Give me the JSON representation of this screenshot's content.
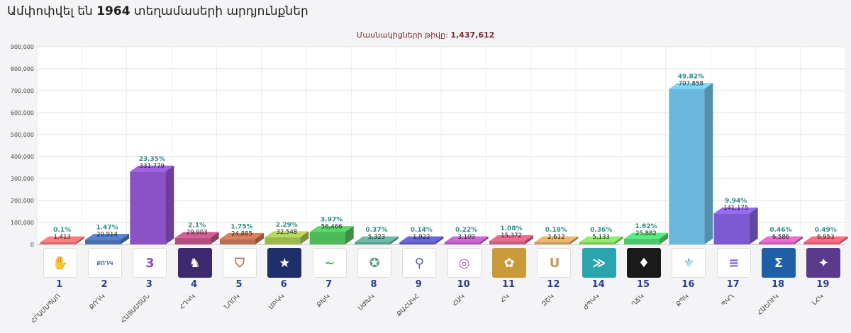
{
  "header": {
    "title_prefix": "Ամփոփվել են",
    "title_number": "1964",
    "title_suffix": "տեղամասերի արդյունքներ"
  },
  "chart_data": {
    "type": "bar",
    "subtitle_label": "Մասնակիցների թիվը:",
    "subtitle_value": "1,437,612",
    "ylim": [
      0,
      900000
    ],
    "yticks": [
      "0",
      "100,000",
      "200,000",
      "300,000",
      "400,000",
      "500,000",
      "600,000",
      "700,000",
      "800,000",
      "900,000"
    ],
    "grid": true,
    "categories": [
      "1",
      "2",
      "3",
      "4",
      "5",
      "6",
      "7",
      "8",
      "9",
      "10",
      "11",
      "12",
      "14",
      "15",
      "16",
      "17",
      "18",
      "19"
    ],
    "abbreviations": [
      "ՀՐԱՄՍՊԱՈ",
      "ՔՈԴԿ",
      "ՀԱՅԱՍՏԱՆ",
      "ՀԴԿԿ",
      "ՆՈՈԿ",
      "ՄԲԿԿ",
      "ՔԽԿ",
      "ՍԺԽԿ",
      "ՔԱՀԱԿՀ",
      "ՀԱԿ",
      "ՀԿ",
      "ԶՇԿ",
      "ԺՊԿԿ",
      "ՂՃԿ",
      "ՔՊԿ",
      "ՊԿՂ",
      "ՀԱԵՈՒԿ",
      "ԼՀԿ"
    ],
    "values": [
      1413,
      20914,
      331779,
      29903,
      24885,
      32548,
      56466,
      5323,
      1922,
      3109,
      15372,
      2612,
      5133,
      25882,
      707858,
      141175,
      6586,
      6953
    ],
    "value_labels": [
      "1,413",
      "20,914",
      "331,779",
      "29,903",
      "24,885",
      "32,548",
      "56,466",
      "5,323",
      "1,922",
      "3,109",
      "15,372",
      "2,612",
      "5,133",
      "25,882",
      "707,858",
      "141,175",
      "6,586",
      "6,953"
    ],
    "percents": [
      "0.1%",
      "1.47%",
      "23.35%",
      "2.1%",
      "1.75%",
      "2.29%",
      "3.97%",
      "0.37%",
      "0.14%",
      "0.22%",
      "1.08%",
      "0.18%",
      "0.36%",
      "1.82%",
      "49.82%",
      "9.94%",
      "0.46%",
      "0.49%"
    ],
    "colors": [
      "#d66b6b",
      "#4b6fb3",
      "#8a52c4",
      "#b4507e",
      "#b86d4e",
      "#9cb84c",
      "#4cb85a",
      "#5aa08e",
      "#5a58b8",
      "#b058b8",
      "#c85c7c",
      "#c89a5c",
      "#7cc85c",
      "#4cc86c",
      "#6ab7dc",
      "#7d5ad1",
      "#c85cb0",
      "#d85c70"
    ],
    "logo_colors": [
      "#ffffff",
      "#ffffff",
      "#ffffff",
      "#3d2a6e",
      "#ffffff",
      "#1e2f6a",
      "#ffffff",
      "#ffffff",
      "#ffffff",
      "#ffffff",
      "#c89a3a",
      "#ffffff",
      "#2aa5b0",
      "#1a1a1a",
      "#ffffff",
      "#ffffff",
      "#1f5fa8",
      "#5a3a8a"
    ],
    "logo_marks": [
      "✋",
      "ՔՈԴԿ",
      "3",
      "♞",
      "⛉",
      "★",
      "~",
      "✪",
      "⚲",
      "◎",
      "✿",
      "Ս",
      "≫",
      "♦",
      "⚜",
      "≡",
      "Σ",
      "✦"
    ]
  }
}
